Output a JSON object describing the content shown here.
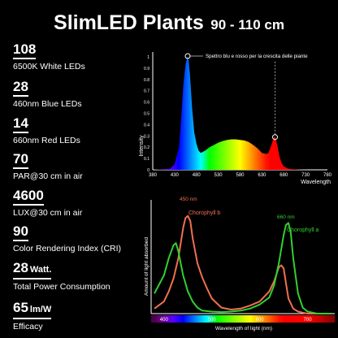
{
  "header": {
    "title": "SlimLED Plants",
    "range": "90 - 110 cm"
  },
  "specs": [
    {
      "value": "108",
      "unit": "",
      "label": "6500K White LEDs"
    },
    {
      "value": "28",
      "unit": "",
      "label": "460nm Blue LEDs"
    },
    {
      "value": "14",
      "unit": "",
      "label": "660nm Red LEDs"
    },
    {
      "value": "70",
      "unit": "",
      "label": "PAR@30 cm in air"
    },
    {
      "value": "4600",
      "unit": "",
      "label": "LUX@30 cm in air"
    },
    {
      "value": "90",
      "unit": "",
      "label": "Color Rendering Index (CRI)"
    },
    {
      "value": "28",
      "unit": "Watt.",
      "label": "Total Power Consumption"
    },
    {
      "value": "65",
      "unit": "lm/W",
      "label": "Efficacy"
    }
  ],
  "chart_data": [
    {
      "type": "area",
      "title": "Spettro blu e rosso per la crescita delle piante",
      "xlabel": "Wavelength",
      "ylabel": "Intensity",
      "xlim": [
        380,
        780
      ],
      "ylim": [
        0,
        1
      ],
      "x_ticks": [
        "380",
        "430",
        "480",
        "530",
        "580",
        "630",
        "680",
        "730",
        "780"
      ],
      "y_ticks": [
        "0",
        "0.1",
        "0.2",
        "0.3",
        "0.4",
        "0.5",
        "0.6",
        "0.7",
        "0.8",
        "0.9",
        "1"
      ],
      "x": [
        380,
        420,
        430,
        440,
        445,
        450,
        455,
        458,
        460,
        462,
        465,
        470,
        475,
        480,
        485,
        490,
        500,
        510,
        520,
        530,
        540,
        550,
        560,
        570,
        580,
        590,
        600,
        610,
        620,
        630,
        640,
        645,
        650,
        655,
        658,
        660,
        662,
        665,
        670,
        675,
        680,
        690,
        700,
        720,
        740,
        760,
        780
      ],
      "values": [
        0,
        0.01,
        0.05,
        0.2,
        0.45,
        0.75,
        0.93,
        0.98,
        1.0,
        0.97,
        0.85,
        0.55,
        0.33,
        0.23,
        0.17,
        0.15,
        0.17,
        0.2,
        0.22,
        0.24,
        0.255,
        0.265,
        0.27,
        0.27,
        0.265,
        0.26,
        0.245,
        0.22,
        0.19,
        0.15,
        0.14,
        0.15,
        0.2,
        0.26,
        0.29,
        0.29,
        0.27,
        0.22,
        0.12,
        0.06,
        0.03,
        0.01,
        0.004,
        0.001,
        0,
        0,
        0
      ],
      "annotations": [
        {
          "x": 460,
          "y": 1.0
        },
        {
          "x": 660,
          "y": 0.29
        }
      ]
    },
    {
      "type": "line",
      "xlabel": "Wavelength of light (nm)",
      "ylabel": "Amount of light absorbed",
      "xlim": [
        380,
        750
      ],
      "x_ticks": [
        "400",
        "500",
        "600",
        "700"
      ],
      "series": [
        {
          "name": "Chorophyll b",
          "color": "#f07050",
          "peak_label": "450 nm",
          "x": [
            380,
            400,
            410,
            420,
            430,
            440,
            445,
            450,
            455,
            460,
            470,
            480,
            490,
            500,
            520,
            540,
            560,
            580,
            600,
            620,
            630,
            640,
            645,
            650,
            655,
            660,
            670,
            680,
            690,
            700,
            720,
            750
          ],
          "values": [
            0.05,
            0.12,
            0.22,
            0.35,
            0.55,
            0.85,
            0.95,
            0.97,
            0.92,
            0.75,
            0.5,
            0.36,
            0.25,
            0.15,
            0.06,
            0.04,
            0.05,
            0.08,
            0.12,
            0.22,
            0.32,
            0.46,
            0.48,
            0.45,
            0.3,
            0.15,
            0.05,
            0.02,
            0.01,
            0,
            0,
            0
          ]
        },
        {
          "name": "Chorophyll a",
          "color": "#30d030",
          "peak_label": "660 nm",
          "x": [
            380,
            400,
            410,
            420,
            425,
            430,
            435,
            440,
            450,
            460,
            470,
            480,
            500,
            520,
            540,
            560,
            580,
            600,
            620,
            630,
            640,
            650,
            655,
            660,
            665,
            670,
            680,
            690,
            700,
            720,
            750
          ],
          "values": [
            0.2,
            0.38,
            0.55,
            0.68,
            0.7,
            0.62,
            0.5,
            0.38,
            0.22,
            0.12,
            0.06,
            0.03,
            0.02,
            0.015,
            0.02,
            0.03,
            0.05,
            0.09,
            0.16,
            0.28,
            0.5,
            0.78,
            0.88,
            0.9,
            0.8,
            0.55,
            0.2,
            0.06,
            0.02,
            0,
            0
          ]
        }
      ]
    }
  ]
}
